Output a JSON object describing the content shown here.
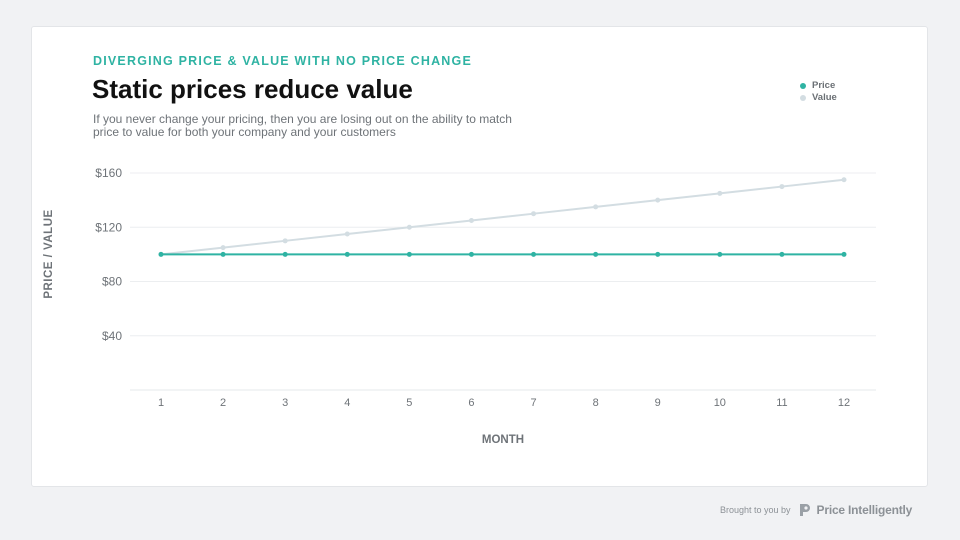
{
  "header": {
    "eyebrow": "DIVERGING PRICE & VALUE WITH NO PRICE CHANGE",
    "title": "Static prices reduce value",
    "subtitle": "If you never change your pricing, then you are losing out on the ability to match price to value for both your company and your customers"
  },
  "legend": {
    "items": [
      {
        "label": "Price",
        "color": "#2fb3a3"
      },
      {
        "label": "Value",
        "color": "#d3dde2"
      }
    ]
  },
  "chart_data": {
    "type": "line",
    "x": [
      1,
      2,
      3,
      4,
      5,
      6,
      7,
      8,
      9,
      10,
      11,
      12
    ],
    "xlabel": "MONTH",
    "ylabel": "PRICE / VALUE",
    "ylim": [
      0,
      160
    ],
    "yticks": [
      40,
      80,
      120,
      160
    ],
    "ytick_labels": [
      "$40",
      "$80",
      "$120",
      "$160"
    ],
    "grid": true,
    "legend_position": "top-right",
    "series": [
      {
        "name": "Price",
        "color": "#2fb3a3",
        "values": [
          100,
          100,
          100,
          100,
          100,
          100,
          100,
          100,
          100,
          100,
          100,
          100
        ]
      },
      {
        "name": "Value",
        "color": "#d3dde2",
        "values": [
          100,
          105,
          110,
          115,
          120,
          125,
          130,
          135,
          140,
          145,
          150,
          155
        ]
      }
    ]
  },
  "footer": {
    "credit": "Brought to you by",
    "brand": "Price Intelligently"
  }
}
